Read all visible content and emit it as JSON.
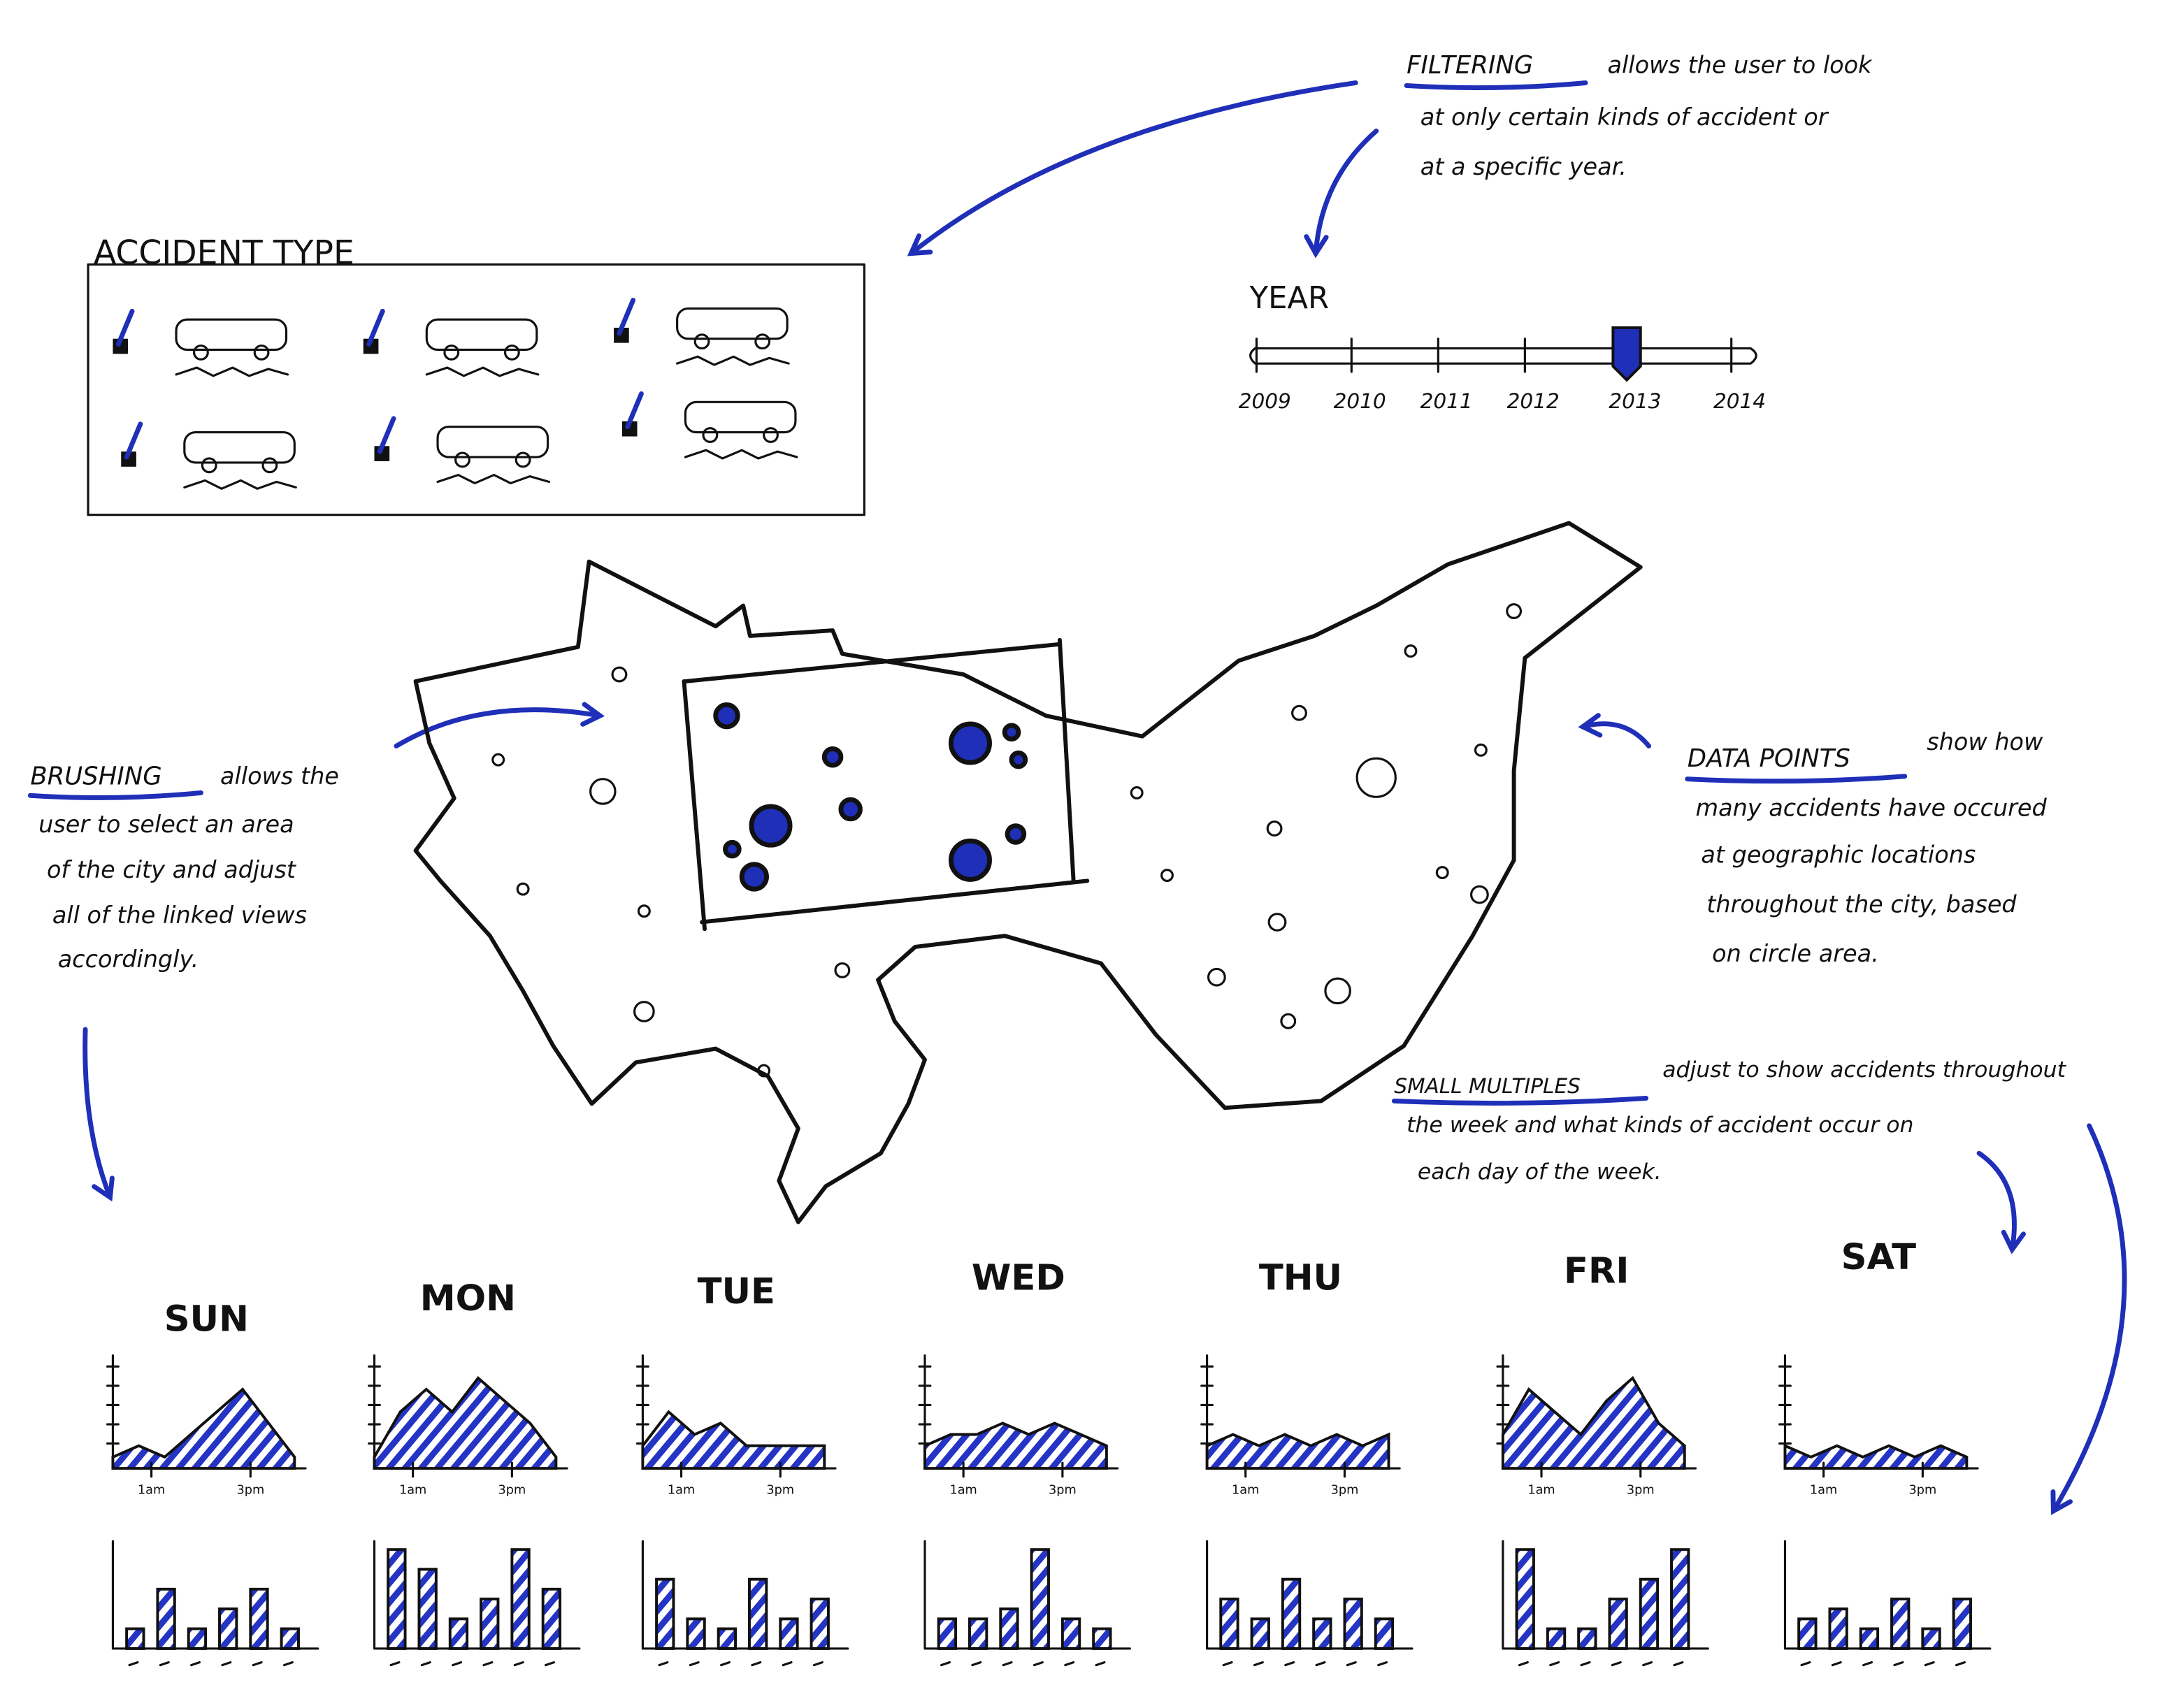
{
  "annotations": {
    "filtering": {
      "term": "FILTERING",
      "lines": [
        "allows the user to look",
        "at only certain kinds of accident or",
        "at a specific year."
      ]
    },
    "brushing": {
      "term": "BRUSHING",
      "lines": [
        "allows the",
        "user to select an area",
        "of the city and adjust",
        "all of the linked views",
        "accordingly."
      ]
    },
    "data_points": {
      "term": "DATA POINTS",
      "lines": [
        "show how",
        "many accidents have occured",
        "at geographic locations",
        "throughout the city, based",
        "on circle area."
      ]
    },
    "small_multiples": {
      "term": "SMALL MULTIPLES",
      "lines": [
        "adjust to show accidents throughout",
        "the week and what kinds of accident occur on",
        "each day of the week."
      ]
    }
  },
  "accident_type": {
    "title": "ACCIDENT TYPE"
  },
  "year": {
    "title": "YEAR",
    "ticks": [
      "2009",
      "2010",
      "2011",
      "2012",
      "2013",
      "2014"
    ],
    "selected": 4
  },
  "time_labels": [
    "1am",
    "3pm"
  ],
  "days": [
    {
      "name": "SUN",
      "area": [
        1,
        2,
        1,
        3,
        5,
        7,
        4,
        1
      ],
      "bars": [
        2,
        6,
        2,
        4,
        6,
        2
      ]
    },
    {
      "name": "MON",
      "area": [
        1,
        5,
        7,
        5,
        8,
        6,
        4,
        1
      ],
      "bars": [
        10,
        8,
        3,
        5,
        10,
        6
      ]
    },
    {
      "name": "TUE",
      "area": [
        2,
        5,
        3,
        4,
        2,
        2,
        2,
        2
      ],
      "bars": [
        7,
        3,
        2,
        7,
        3,
        5
      ]
    },
    {
      "name": "WED",
      "area": [
        2,
        3,
        3,
        4,
        3,
        4,
        3,
        2
      ],
      "bars": [
        3,
        3,
        4,
        10,
        3,
        2
      ]
    },
    {
      "name": "THU",
      "area": [
        2,
        3,
        2,
        3,
        2,
        3,
        2,
        3
      ],
      "bars": [
        5,
        3,
        7,
        3,
        5,
        3
      ]
    },
    {
      "name": "FRI",
      "area": [
        3,
        7,
        5,
        3,
        6,
        8,
        4,
        2
      ],
      "bars": [
        10,
        2,
        2,
        5,
        7,
        10
      ]
    },
    {
      "name": "SAT",
      "area": [
        2,
        1,
        2,
        1,
        2,
        1,
        2,
        1
      ],
      "bars": [
        3,
        4,
        2,
        5,
        2,
        5
      ]
    }
  ]
}
